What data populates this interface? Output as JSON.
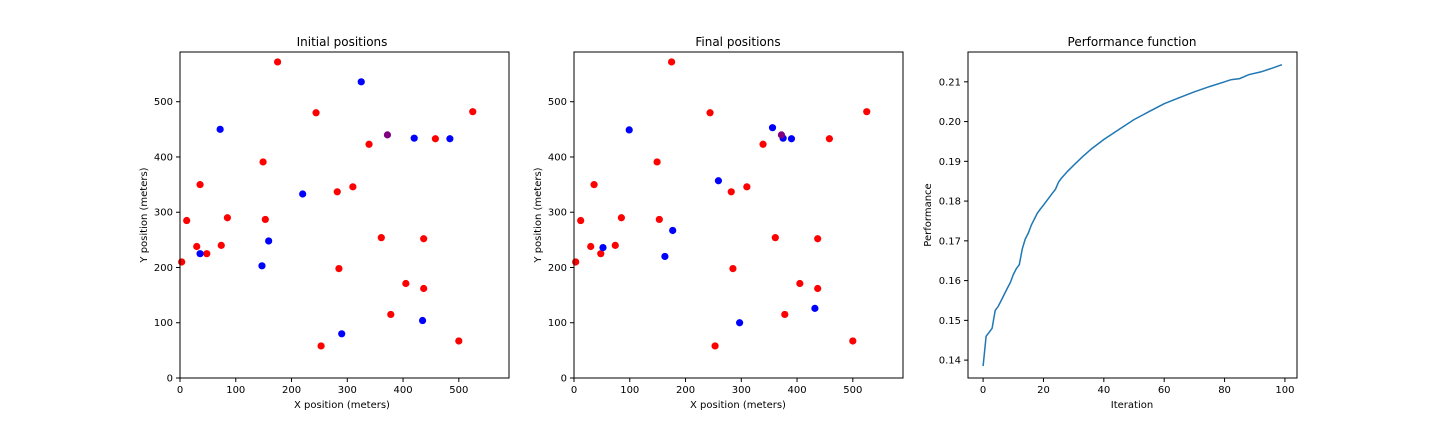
{
  "chart_data": [
    {
      "type": "scatter",
      "title": "Initial positions",
      "xlabel": "X position (meters)",
      "ylabel": "Y position (meters)",
      "xlim": [
        0,
        590
      ],
      "ylim": [
        0,
        590
      ],
      "xticks": [
        0,
        100,
        200,
        300,
        400,
        500
      ],
      "yticks": [
        0,
        100,
        200,
        300,
        400,
        500
      ],
      "grid": false,
      "series": [
        {
          "color": "#ff0000",
          "points": [
            [
              175,
              572
            ],
            [
              244,
              480
            ],
            [
              525,
              482
            ],
            [
              339,
              423
            ],
            [
              458,
              433
            ],
            [
              149,
              391
            ],
            [
              36,
              350
            ],
            [
              310,
              346
            ],
            [
              282,
              337
            ],
            [
              85,
              290
            ],
            [
              12,
              285
            ],
            [
              153,
              287
            ],
            [
              30,
              238
            ],
            [
              74,
              240
            ],
            [
              48,
              225
            ],
            [
              3,
              210
            ],
            [
              361,
              254
            ],
            [
              437,
              252
            ],
            [
              285,
              198
            ],
            [
              405,
              171
            ],
            [
              437,
              162
            ],
            [
              378,
              115
            ],
            [
              253,
              58
            ],
            [
              500,
              67
            ]
          ]
        },
        {
          "color": "#0000ff",
          "points": [
            [
              325,
              536
            ],
            [
              72,
              450
            ],
            [
              420,
              434
            ],
            [
              484,
              433
            ],
            [
              220,
              333
            ],
            [
              159,
              248
            ],
            [
              36,
              225
            ],
            [
              147,
              203
            ],
            [
              290,
              80
            ],
            [
              435,
              104
            ]
          ]
        },
        {
          "color": "#800080",
          "points": [
            [
              372,
              440
            ]
          ]
        }
      ]
    },
    {
      "type": "scatter",
      "title": "Final positions",
      "xlabel": "X position (meters)",
      "ylabel": "Y position (meters)",
      "xlim": [
        0,
        590
      ],
      "ylim": [
        0,
        590
      ],
      "xticks": [
        0,
        100,
        200,
        300,
        400,
        500
      ],
      "yticks": [
        0,
        100,
        200,
        300,
        400,
        500
      ],
      "grid": false,
      "series": [
        {
          "color": "#ff0000",
          "points": [
            [
              175,
              572
            ],
            [
              244,
              480
            ],
            [
              525,
              482
            ],
            [
              339,
              423
            ],
            [
              458,
              433
            ],
            [
              149,
              391
            ],
            [
              36,
              350
            ],
            [
              310,
              346
            ],
            [
              282,
              337
            ],
            [
              85,
              290
            ],
            [
              12,
              285
            ],
            [
              153,
              287
            ],
            [
              30,
              238
            ],
            [
              74,
              240
            ],
            [
              48,
              225
            ],
            [
              3,
              210
            ],
            [
              361,
              254
            ],
            [
              437,
              252
            ],
            [
              285,
              198
            ],
            [
              405,
              171
            ],
            [
              437,
              162
            ],
            [
              378,
              115
            ],
            [
              253,
              58
            ],
            [
              500,
              67
            ]
          ]
        },
        {
          "color": "#0000ff",
          "points": [
            [
              356,
              453
            ],
            [
              375,
              434
            ],
            [
              390,
              433
            ],
            [
              99,
              449
            ],
            [
              259,
              357
            ],
            [
              177,
              267
            ],
            [
              52,
              236
            ],
            [
              163,
              220
            ],
            [
              297,
              100
            ],
            [
              432,
              126
            ]
          ]
        },
        {
          "color": "#800080",
          "points": [
            [
              372,
              440
            ]
          ]
        }
      ]
    },
    {
      "type": "line",
      "title": "Performance function",
      "xlabel": "Iteration",
      "ylabel": "Performance",
      "xlim": [
        -5,
        104
      ],
      "ylim": [
        0.1355,
        0.2175
      ],
      "xticks": [
        0,
        20,
        40,
        60,
        80,
        100
      ],
      "yticks": [
        0.14,
        0.15,
        0.16,
        0.17,
        0.18,
        0.19,
        0.2,
        0.21
      ],
      "ytick_labels": [
        "0.14",
        "0.15",
        "0.16",
        "0.17",
        "0.18",
        "0.19",
        "0.20",
        "0.21"
      ],
      "grid": false,
      "series": [
        {
          "color": "#1f77b4",
          "x": [
            0,
            1,
            2,
            3,
            4,
            5,
            6,
            7,
            8,
            9,
            10,
            11,
            12,
            13,
            14,
            15,
            16,
            17,
            18,
            19,
            20,
            21,
            22,
            23,
            24,
            25,
            26,
            28,
            30,
            33,
            36,
            40,
            45,
            50,
            55,
            60,
            65,
            70,
            75,
            80,
            82,
            83,
            85,
            88,
            92,
            96,
            99
          ],
          "values": [
            0.1385,
            0.146,
            0.147,
            0.148,
            0.1525,
            0.1535,
            0.155,
            0.1565,
            0.158,
            0.1595,
            0.1615,
            0.163,
            0.164,
            0.168,
            0.1705,
            0.172,
            0.174,
            0.1755,
            0.177,
            0.178,
            0.179,
            0.18,
            0.181,
            0.182,
            0.183,
            0.1848,
            0.1858,
            0.1875,
            0.189,
            0.1912,
            0.1932,
            0.1955,
            0.198,
            0.2005,
            0.2025,
            0.2045,
            0.206,
            0.2075,
            0.2088,
            0.21,
            0.2105,
            0.2106,
            0.2108,
            0.2118,
            0.2125,
            0.2135,
            0.2143
          ]
        }
      ]
    }
  ]
}
